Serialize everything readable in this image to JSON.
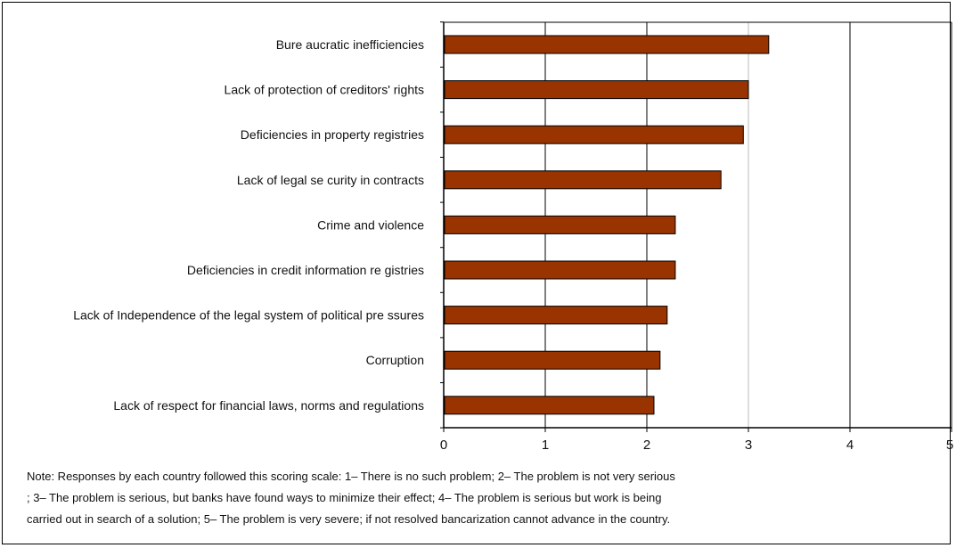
{
  "chart_data": {
    "type": "bar",
    "orientation": "horizontal",
    "categories": [
      "Bure aucratic inefficiencies",
      "Lack of protection of creditors' rights",
      "Deficiencies in property registries",
      "Lack of legal se curity in contracts",
      "Crime and violence",
      "Deficiencies in credit information re gistries",
      "Lack of Independence of the legal system of political pre ssures",
      "Corruption",
      "Lack of respect for financial laws, norms and regulations"
    ],
    "values": [
      3.2,
      3.0,
      2.95,
      2.73,
      2.28,
      2.28,
      2.2,
      2.13,
      2.07
    ],
    "xlim": [
      0,
      5
    ],
    "xticks": [
      "0",
      "1",
      "2",
      "3",
      "4",
      "5"
    ],
    "grid": true,
    "bar_color": "#993300"
  },
  "note": {
    "lines": [
      "Note: Responses by each country followed this scoring scale: 1– There is no such problem; 2– The problem is not very serious",
      "; 3– The problem is serious, but banks have found ways to minimize their effect; 4– The problem is serious but work is being",
      "carried out in search of a solution; 5– The problem is very severe; if not resolved bancarization cannot advance in the country."
    ]
  }
}
